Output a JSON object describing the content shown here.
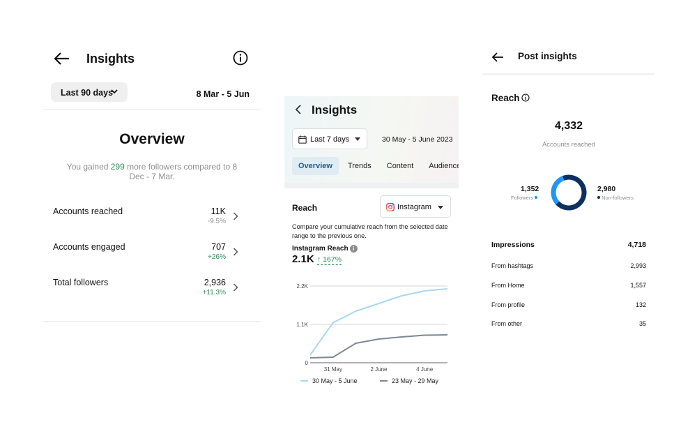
{
  "panel1": {
    "title": "Insights",
    "range_label": "Last 90 days",
    "date_range": "8 Mar - 5 Jun",
    "overview_title": "Overview",
    "gained_pre": "You gained ",
    "gained_count": "299",
    "gained_post": " more followers compared to 8 Dec - 7 Mar.",
    "rows": [
      {
        "label": "Accounts reached",
        "value": "11K",
        "change": "-9.5%"
      },
      {
        "label": "Accounts engaged",
        "value": "707",
        "change": "+26%"
      },
      {
        "label": "Total followers",
        "value": "2,936",
        "change": "+11.3%"
      }
    ]
  },
  "panel2": {
    "title": "Insights",
    "range_label": "Last 7 days",
    "date_range": "30 May - 5 June 2023",
    "tabs": [
      "Overview",
      "Trends",
      "Content",
      "Audience"
    ],
    "reach_title": "Reach",
    "platform": "Instagram",
    "compare_text": "Compare your cumulative reach from the selected date range to the previous one.",
    "metric_label": "Instagram Reach",
    "metric_value": "2.1K",
    "metric_change": "↑ 167%"
  },
  "panel3": {
    "title": "Post insights",
    "reach_title": "Reach",
    "accounts_reached": "4,332",
    "accounts_reached_label": "Accounts reached",
    "followers_value": "1,352",
    "followers_label": "Followers",
    "nonfollowers_value": "2,980",
    "nonfollowers_label": "Non-followers",
    "followers_share": 0.312,
    "impressions_label": "Impressions",
    "impressions_value": "4,718",
    "sources": [
      {
        "label": "From hashtags",
        "value": "2,993"
      },
      {
        "label": "From Home",
        "value": "1,557"
      },
      {
        "label": "From profile",
        "value": "132"
      },
      {
        "label": "From other",
        "value": "35"
      }
    ]
  },
  "colors": {
    "green": "#2e8b57",
    "current_series": "#a8d8f0",
    "previous_series": "#7d8893",
    "followers": "#2196f3",
    "nonfollowers": "#0d3060"
  },
  "chart_data": {
    "type": "line",
    "x": [
      "30 May",
      "31 May",
      "1 June",
      "2 June",
      "3 June",
      "4 June",
      "5 June"
    ],
    "x_tick_labels": [
      "31 May",
      "2 June",
      "4 June"
    ],
    "y_tick_labels": [
      "0",
      "1.1K",
      "2.2K"
    ],
    "ylim": [
      0,
      2200
    ],
    "series": [
      {
        "name": "30 May - 5 June",
        "values": [
          220,
          1150,
          1480,
          1700,
          1920,
          2060,
          2120
        ]
      },
      {
        "name": "23 May - 29 May",
        "values": [
          140,
          160,
          560,
          680,
          740,
          790,
          800
        ]
      }
    ],
    "grid": true,
    "legend": "bottom"
  }
}
